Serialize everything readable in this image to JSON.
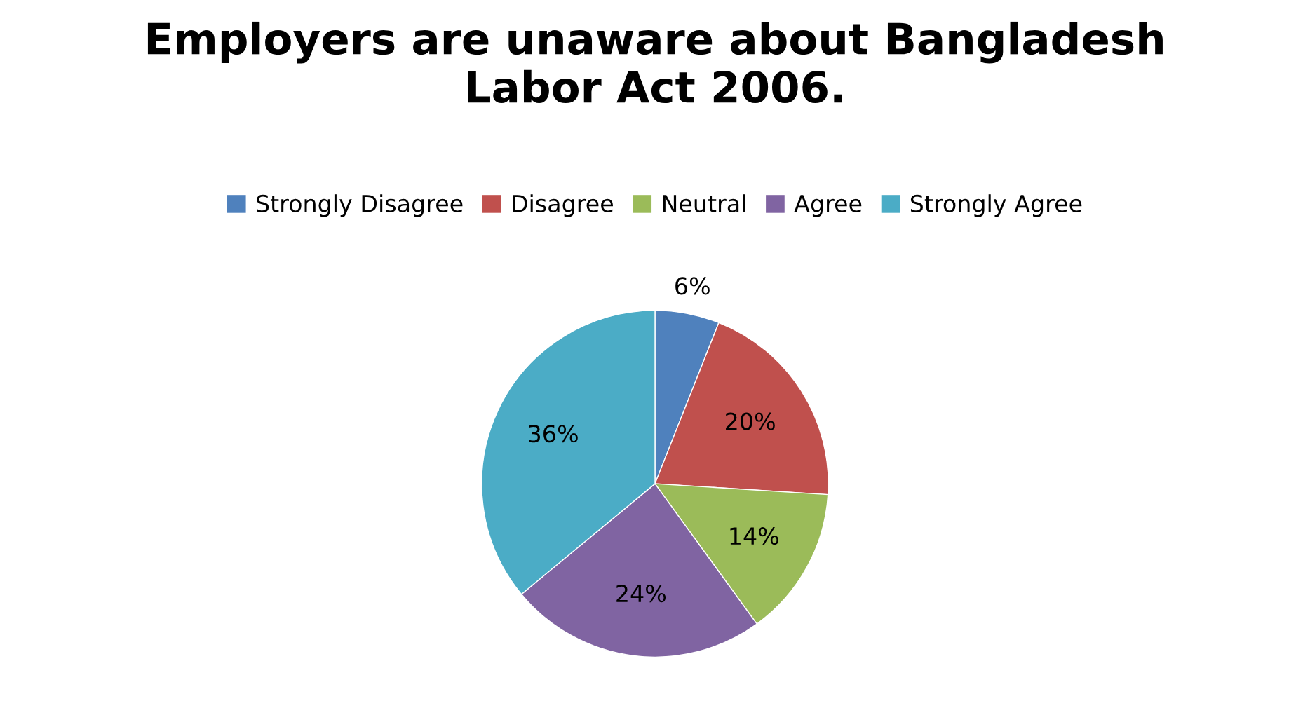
{
  "chart_data": {
    "type": "pie",
    "title": "Employers are unaware about Bangladesh\nLabor Act 2006.",
    "categories": [
      "Strongly Disagree",
      "Disagree",
      "Neutral",
      "Agree",
      "Strongly Agree"
    ],
    "values": [
      6,
      20,
      14,
      24,
      36
    ],
    "value_labels": [
      "6%",
      "20%",
      "14%",
      "24%",
      "36%"
    ],
    "colors": [
      "#4f81bd",
      "#c0504d",
      "#9bbb59",
      "#8064a2",
      "#4bacc6"
    ],
    "legend": "top"
  }
}
